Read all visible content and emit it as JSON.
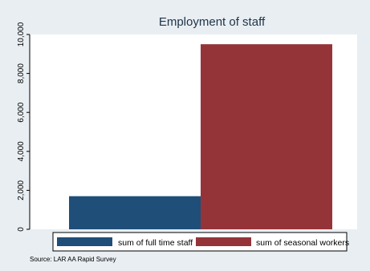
{
  "chart_data": {
    "type": "bar",
    "title": "Employment of staff",
    "xlabel": "",
    "ylabel": "",
    "ylim": [
      0,
      10000
    ],
    "yticks": [
      0,
      2000,
      4000,
      6000,
      8000,
      10000
    ],
    "ytick_labels": [
      "0",
      "2,000",
      "4,000",
      "6,000",
      "8,000",
      "10,000"
    ],
    "grid": false,
    "legend_position": "bottom",
    "series": [
      {
        "name": "sum of full time staff",
        "value": 1700,
        "color": "#1F4E79"
      },
      {
        "name": "sum of seasonal workers",
        "value": 9500,
        "color": "#943439"
      }
    ],
    "note": "Source: LAR AA Rapid Survey"
  },
  "colors": {
    "outer_background": "#E8EEF2",
    "plot_background": "#FFFFFF",
    "title_text": "#1E3348"
  }
}
